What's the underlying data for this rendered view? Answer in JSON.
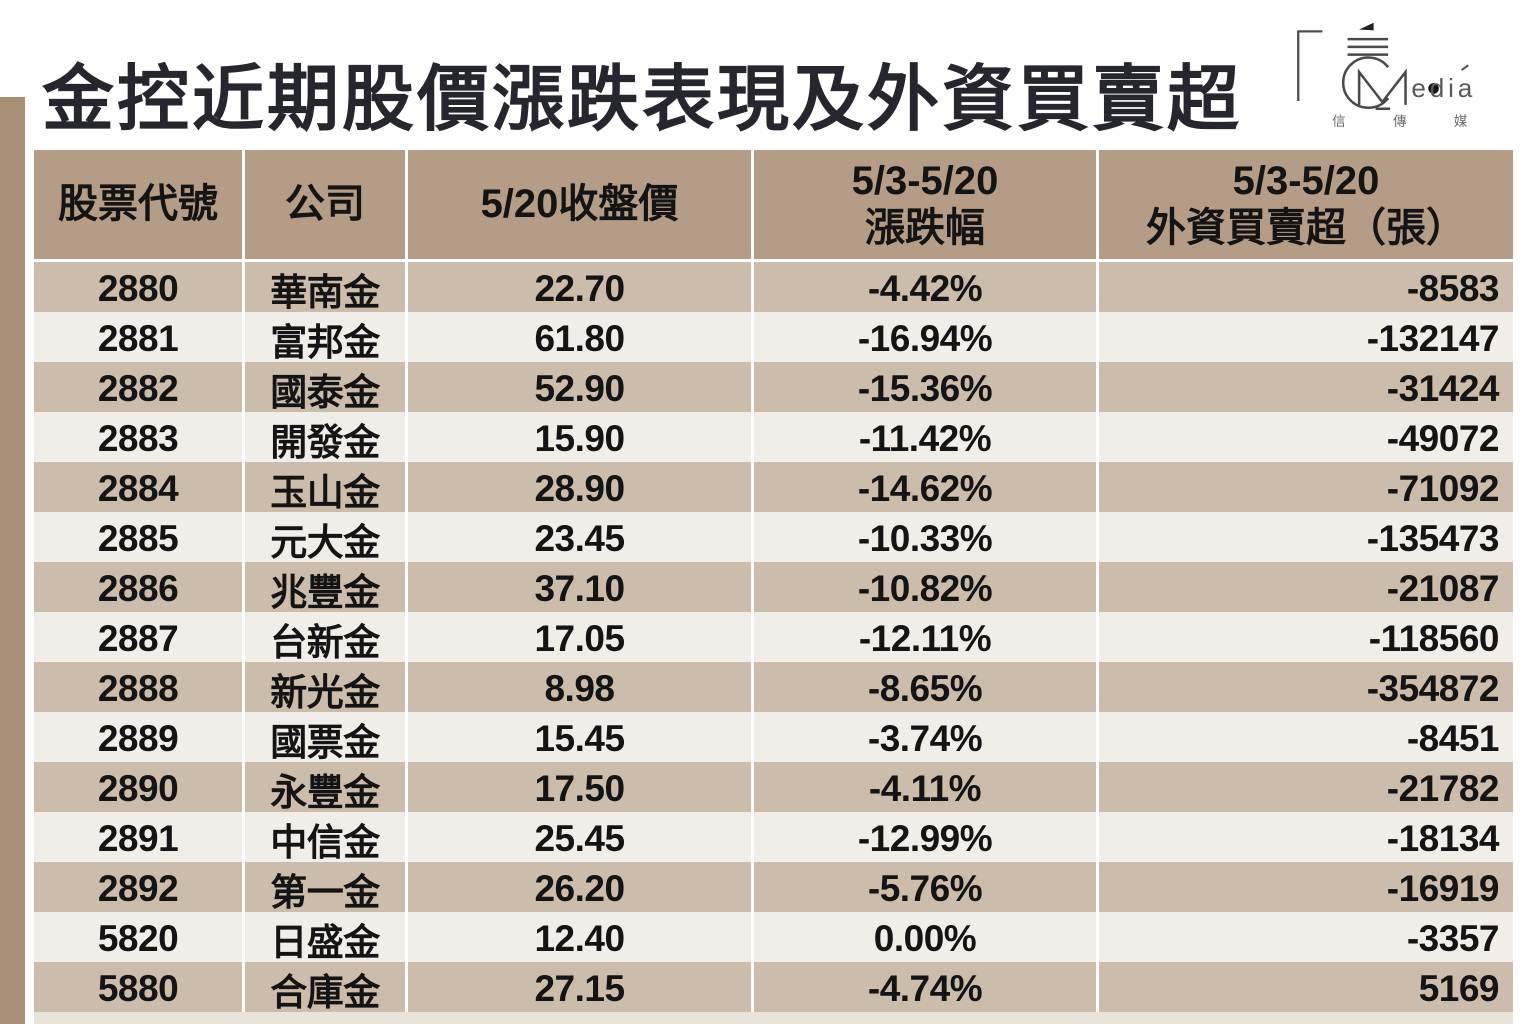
{
  "title": "金控近期股價漲跌表現及外資買賣超",
  "logo": {
    "wordmark_suffix": "edia",
    "cjk": [
      "信",
      "傳",
      "媒"
    ]
  },
  "colors": {
    "header_bg": "#b59c86",
    "row_dark": "#ccbcab",
    "row_light": "#f1ede8",
    "strip": "#a78e74",
    "title_color": "#26262e"
  },
  "table": {
    "header_cells": [
      [
        "股票代號"
      ],
      [
        "公司"
      ],
      [
        "5/20收盤價"
      ],
      [
        "5/3-5/20",
        "漲跌幅"
      ],
      [
        "5/3-5/20",
        "外資買賣超（張）"
      ]
    ]
  },
  "chart_data": {
    "type": "table",
    "title": "金控近期股價漲跌表現及外資買賣超",
    "columns": [
      "股票代號",
      "公司",
      "5/20收盤價",
      "5/3-5/20 漲跌幅",
      "5/3-5/20 外資買賣超（張）"
    ],
    "rows": [
      [
        "2880",
        "華南金",
        "22.70",
        "-4.42%",
        "-8583"
      ],
      [
        "2881",
        "富邦金",
        "61.80",
        "-16.94%",
        "-132147"
      ],
      [
        "2882",
        "國泰金",
        "52.90",
        "-15.36%",
        "-31424"
      ],
      [
        "2883",
        "開發金",
        "15.90",
        "-11.42%",
        "-49072"
      ],
      [
        "2884",
        "玉山金",
        "28.90",
        "-14.62%",
        "-71092"
      ],
      [
        "2885",
        "元大金",
        "23.45",
        "-10.33%",
        "-135473"
      ],
      [
        "2886",
        "兆豐金",
        "37.10",
        "-10.82%",
        "-21087"
      ],
      [
        "2887",
        "台新金",
        "17.05",
        "-12.11%",
        "-118560"
      ],
      [
        "2888",
        "新光金",
        "8.98",
        "-8.65%",
        "-354872"
      ],
      [
        "2889",
        "國票金",
        "15.45",
        "-3.74%",
        "-8451"
      ],
      [
        "2890",
        "永豐金",
        "17.50",
        "-4.11%",
        "-21782"
      ],
      [
        "2891",
        "中信金",
        "25.45",
        "-12.99%",
        "-18134"
      ],
      [
        "2892",
        "第一金",
        "26.20",
        "-5.76%",
        "-16919"
      ],
      [
        "5820",
        "日盛金",
        "12.40",
        "0.00%",
        "-3357"
      ],
      [
        "5880",
        "合庫金",
        "27.15",
        "-4.74%",
        "5169"
      ]
    ]
  }
}
